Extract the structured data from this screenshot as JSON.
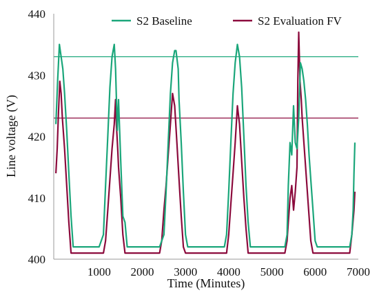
{
  "chart_data": {
    "type": "line",
    "title": "",
    "xlabel": "Time (Minutes)",
    "ylabel": "Line voltage (V)",
    "xlim": [
      -50,
      7000
    ],
    "ylim": [
      400,
      440
    ],
    "xticks": [
      1000,
      2000,
      3000,
      4000,
      5000,
      6000,
      7000
    ],
    "yticks": [
      400,
      410,
      420,
      430,
      440
    ],
    "xtick_labels": [
      "1000",
      "2000",
      "3000",
      "4000",
      "5000",
      "6000",
      "7000"
    ],
    "ytick_labels": [
      "400",
      "410",
      "420",
      "430",
      "440"
    ],
    "grid": false,
    "legend": "top, horizontal",
    "series": [
      {
        "name": "S2 Baseline",
        "color": "#1aa67a",
        "x": [
          0,
          40,
          80,
          120,
          160,
          200,
          250,
          300,
          350,
          400,
          600,
          1000,
          1100,
          1150,
          1200,
          1250,
          1300,
          1350,
          1380,
          1420,
          1450,
          1500,
          1550,
          1600,
          1650,
          1700,
          1800,
          2400,
          2500,
          2550,
          2600,
          2650,
          2700,
          2750,
          2780,
          2830,
          2850,
          2900,
          2950,
          3000,
          3050,
          3100,
          3200,
          3900,
          3950,
          4000,
          4050,
          4100,
          4150,
          4200,
          4250,
          4300,
          4350,
          4400,
          4450,
          4500,
          4550,
          4600,
          4700,
          5300,
          5350,
          5380,
          5420,
          5460,
          5500,
          5540,
          5580,
          5620,
          5660,
          5700,
          5740,
          5780,
          5820,
          5860,
          5900,
          5950,
          6000,
          6050,
          6100,
          6200,
          6800,
          6850,
          6880,
          6900,
          6920
        ],
        "values": [
          422,
          429,
          435,
          433,
          431,
          427,
          421,
          414,
          407,
          402,
          402,
          402,
          404,
          412,
          420,
          428,
          433,
          435,
          431,
          421,
          426,
          416,
          407,
          406,
          402,
          402,
          402,
          402,
          404,
          411,
          419,
          427,
          432,
          434,
          434,
          431,
          426,
          419,
          411,
          404,
          402,
          402,
          402,
          402,
          404,
          411,
          419,
          427,
          432,
          435,
          433,
          428,
          420,
          412,
          406,
          402,
          402,
          402,
          402,
          402,
          404,
          412,
          419,
          417,
          425,
          419,
          418,
          423,
          432,
          431,
          429,
          426,
          422,
          417,
          413,
          408,
          403,
          402,
          402,
          402,
          402,
          404,
          408,
          414,
          419
        ]
      },
      {
        "name": "S2 Evaluation FV",
        "color": "#8b0a3c",
        "x": [
          0,
          30,
          60,
          90,
          120,
          150,
          200,
          250,
          300,
          350,
          600,
          1100,
          1150,
          1200,
          1250,
          1300,
          1350,
          1380,
          1400,
          1430,
          1450,
          1500,
          1550,
          1600,
          1650,
          2400,
          2450,
          2500,
          2550,
          2600,
          2650,
          2700,
          2750,
          2800,
          2850,
          2900,
          2950,
          3000,
          3100,
          3950,
          4000,
          4050,
          4100,
          4150,
          4200,
          4250,
          4300,
          4350,
          4400,
          4450,
          4500,
          4600,
          5300,
          5350,
          5380,
          5420,
          5460,
          5500,
          5540,
          5580,
          5600,
          5620,
          5650,
          5680,
          5700,
          5740,
          5780,
          5820,
          5860,
          5900,
          5950,
          6000,
          6100,
          6800,
          6850,
          6900,
          6920
        ],
        "values": [
          414,
          418,
          424,
          429,
          427,
          423,
          418,
          412,
          406,
          401,
          401,
          401,
          403,
          408,
          413,
          418,
          422,
          426,
          422,
          418,
          415,
          410,
          404,
          401,
          401,
          401,
          403,
          408,
          412,
          417,
          422,
          427,
          425,
          419,
          413,
          407,
          402,
          401,
          401,
          401,
          404,
          409,
          414,
          419,
          425,
          422,
          416,
          410,
          405,
          401,
          401,
          401,
          401,
          403,
          406,
          410,
          412,
          408,
          411,
          415,
          429,
          437,
          429,
          426,
          423,
          419,
          415,
          411,
          407,
          403,
          401,
          401,
          401,
          401,
          404,
          408,
          411
        ]
      }
    ],
    "reference_lines": [
      {
        "series": "S2 Baseline",
        "y": 433,
        "color": "#1aa67a"
      },
      {
        "series": "S2 Evaluation FV",
        "y": 423,
        "color": "#8b0a3c"
      }
    ]
  }
}
